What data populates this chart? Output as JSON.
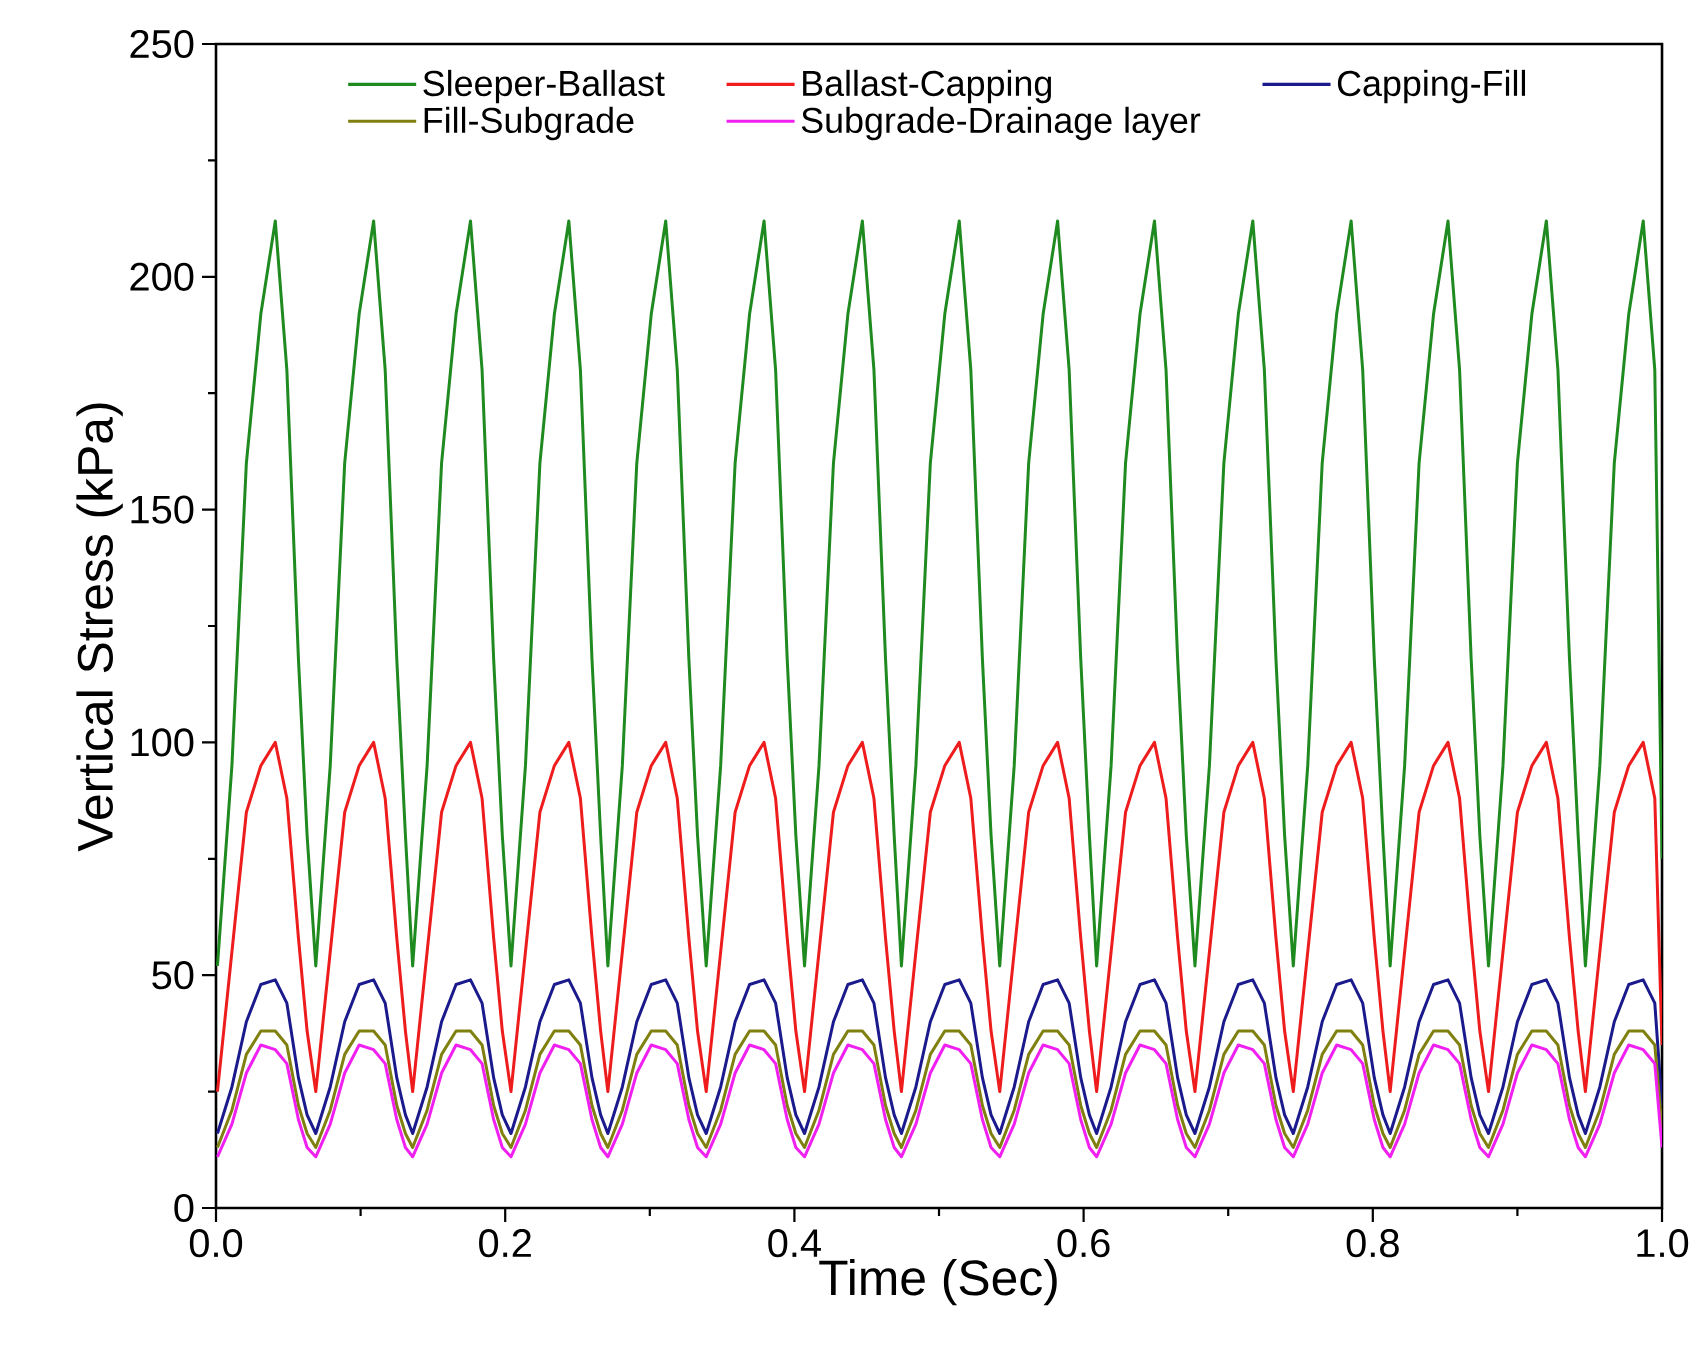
{
  "chart_data": {
    "type": "line",
    "xlabel": "Time (Sec)",
    "ylabel": "Vertical Stress (kPa)",
    "legend": "top",
    "xlim": [
      0,
      1
    ],
    "ylim": [
      0,
      250
    ],
    "xticks": [
      {
        "value": 0,
        "label": "0.0"
      },
      {
        "value": 0.2,
        "label": "0.2"
      },
      {
        "value": 0.4,
        "label": "0.4"
      },
      {
        "value": 0.6,
        "label": "0.6"
      },
      {
        "value": 0.8,
        "label": "0.8"
      },
      {
        "value": 1,
        "label": "1.0"
      }
    ],
    "yticks": [
      0,
      50,
      100,
      150,
      200,
      250
    ],
    "x": [
      0.001,
      0.011,
      0.021,
      0.031,
      0.041,
      0.049,
      0.057,
      0.063,
      0.069,
      0.079,
      0.089,
      0.099,
      0.109,
      0.117,
      0.125,
      0.131,
      0.136,
      0.146,
      0.156,
      0.166,
      0.176,
      0.184,
      0.192,
      0.198,
      0.204,
      0.214,
      0.224,
      0.234,
      0.244,
      0.252,
      0.26,
      0.266,
      0.271,
      0.281,
      0.291,
      0.301,
      0.311,
      0.319,
      0.327,
      0.333,
      0.339,
      0.349,
      0.359,
      0.369,
      0.379,
      0.387,
      0.395,
      0.401,
      0.407,
      0.417,
      0.427,
      0.437,
      0.447,
      0.455,
      0.463,
      0.469,
      0.474,
      0.484,
      0.494,
      0.504,
      0.514,
      0.522,
      0.53,
      0.536,
      0.542,
      0.552,
      0.562,
      0.572,
      0.582,
      0.59,
      0.598,
      0.604,
      0.609,
      0.619,
      0.629,
      0.639,
      0.649,
      0.657,
      0.665,
      0.671,
      0.677,
      0.687,
      0.697,
      0.707,
      0.717,
      0.725,
      0.733,
      0.739,
      0.745,
      0.755,
      0.765,
      0.775,
      0.785,
      0.793,
      0.801,
      0.807,
      0.812,
      0.822,
      0.832,
      0.842,
      0.852,
      0.86,
      0.868,
      0.874,
      0.88,
      0.89,
      0.9,
      0.91,
      0.92,
      0.928,
      0.936,
      0.942,
      0.947,
      0.957,
      0.967,
      0.977,
      0.987,
      0.995,
      1.0
    ],
    "series": [
      {
        "name": "Sleeper-Ballast",
        "color": "#1f8a1f",
        "values": [
          52,
          95,
          160,
          192,
          212,
          180,
          118,
          80,
          52,
          95,
          160,
          192,
          212,
          180,
          118,
          80,
          52,
          95,
          160,
          192,
          212,
          180,
          118,
          80,
          52,
          95,
          160,
          192,
          212,
          180,
          118,
          80,
          52,
          95,
          160,
          192,
          212,
          180,
          118,
          80,
          52,
          95,
          160,
          192,
          212,
          180,
          118,
          80,
          52,
          95,
          160,
          192,
          212,
          180,
          118,
          80,
          52,
          95,
          160,
          192,
          212,
          180,
          118,
          80,
          52,
          95,
          160,
          192,
          212,
          180,
          118,
          80,
          52,
          95,
          160,
          192,
          212,
          180,
          118,
          80,
          52,
          95,
          160,
          192,
          212,
          180,
          118,
          80,
          52,
          95,
          160,
          192,
          212,
          180,
          118,
          80,
          52,
          95,
          160,
          192,
          212,
          180,
          118,
          80,
          52,
          95,
          160,
          192,
          212,
          180,
          118,
          80,
          52,
          95,
          160,
          192,
          212,
          180,
          75
        ]
      },
      {
        "name": "Ballast-Capping",
        "color": "#ee1c1c",
        "values": [
          25,
          55,
          85,
          95,
          100,
          88,
          58,
          38,
          25,
          55,
          85,
          95,
          100,
          88,
          58,
          38,
          25,
          55,
          85,
          95,
          100,
          88,
          58,
          38,
          25,
          55,
          85,
          95,
          100,
          88,
          58,
          38,
          25,
          55,
          85,
          95,
          100,
          88,
          58,
          38,
          25,
          55,
          85,
          95,
          100,
          88,
          58,
          38,
          25,
          55,
          85,
          95,
          100,
          88,
          58,
          38,
          25,
          55,
          85,
          95,
          100,
          88,
          58,
          38,
          25,
          55,
          85,
          95,
          100,
          88,
          58,
          38,
          25,
          55,
          85,
          95,
          100,
          88,
          58,
          38,
          25,
          55,
          85,
          95,
          100,
          88,
          58,
          38,
          25,
          55,
          85,
          95,
          100,
          88,
          58,
          38,
          25,
          55,
          85,
          95,
          100,
          88,
          58,
          38,
          25,
          55,
          85,
          95,
          100,
          88,
          58,
          38,
          25,
          55,
          85,
          95,
          100,
          88,
          35
        ]
      },
      {
        "name": "Capping-Fill",
        "color": "#1a1a8c",
        "values": [
          16,
          26,
          40,
          48,
          49,
          44,
          28,
          20,
          16,
          26,
          40,
          48,
          49,
          44,
          28,
          20,
          16,
          26,
          40,
          48,
          49,
          44,
          28,
          20,
          16,
          26,
          40,
          48,
          49,
          44,
          28,
          20,
          16,
          26,
          40,
          48,
          49,
          44,
          28,
          20,
          16,
          26,
          40,
          48,
          49,
          44,
          28,
          20,
          16,
          26,
          40,
          48,
          49,
          44,
          28,
          20,
          16,
          26,
          40,
          48,
          49,
          44,
          28,
          20,
          16,
          26,
          40,
          48,
          49,
          44,
          28,
          20,
          16,
          26,
          40,
          48,
          49,
          44,
          28,
          20,
          16,
          26,
          40,
          48,
          49,
          44,
          28,
          20,
          16,
          26,
          40,
          48,
          49,
          44,
          28,
          20,
          16,
          26,
          40,
          48,
          49,
          44,
          28,
          20,
          16,
          26,
          40,
          48,
          49,
          44,
          28,
          20,
          16,
          26,
          40,
          48,
          49,
          44,
          22
        ]
      },
      {
        "name": "Fill-Subgrade",
        "color": "#808010",
        "values": [
          13,
          21,
          33,
          38,
          38,
          35,
          22,
          16,
          13,
          21,
          33,
          38,
          38,
          35,
          22,
          16,
          13,
          21,
          33,
          38,
          38,
          35,
          22,
          16,
          13,
          21,
          33,
          38,
          38,
          35,
          22,
          16,
          13,
          21,
          33,
          38,
          38,
          35,
          22,
          16,
          13,
          21,
          33,
          38,
          38,
          35,
          22,
          16,
          13,
          21,
          33,
          38,
          38,
          35,
          22,
          16,
          13,
          21,
          33,
          38,
          38,
          35,
          22,
          16,
          13,
          21,
          33,
          38,
          38,
          35,
          22,
          16,
          13,
          21,
          33,
          38,
          38,
          35,
          22,
          16,
          13,
          21,
          33,
          38,
          38,
          35,
          22,
          16,
          13,
          21,
          33,
          38,
          38,
          35,
          22,
          16,
          13,
          21,
          33,
          38,
          38,
          35,
          22,
          16,
          13,
          21,
          33,
          38,
          38,
          35,
          22,
          16,
          13,
          21,
          33,
          38,
          38,
          35,
          17
        ]
      },
      {
        "name": "Subgrade-Drainage layer",
        "color": "#f020f0",
        "values": [
          11,
          18,
          29,
          35,
          34,
          31,
          19,
          13,
          11,
          18,
          29,
          35,
          34,
          31,
          19,
          13,
          11,
          18,
          29,
          35,
          34,
          31,
          19,
          13,
          11,
          18,
          29,
          35,
          34,
          31,
          19,
          13,
          11,
          18,
          29,
          35,
          34,
          31,
          19,
          13,
          11,
          18,
          29,
          35,
          34,
          31,
          19,
          13,
          11,
          18,
          29,
          35,
          34,
          31,
          19,
          13,
          11,
          18,
          29,
          35,
          34,
          31,
          19,
          13,
          11,
          18,
          29,
          35,
          34,
          31,
          19,
          13,
          11,
          18,
          29,
          35,
          34,
          31,
          19,
          13,
          11,
          18,
          29,
          35,
          34,
          31,
          19,
          13,
          11,
          18,
          29,
          35,
          34,
          31,
          19,
          13,
          11,
          18,
          29,
          35,
          34,
          31,
          19,
          13,
          11,
          18,
          29,
          35,
          34,
          31,
          19,
          13,
          11,
          18,
          29,
          35,
          34,
          31,
          13
        ]
      }
    ]
  }
}
